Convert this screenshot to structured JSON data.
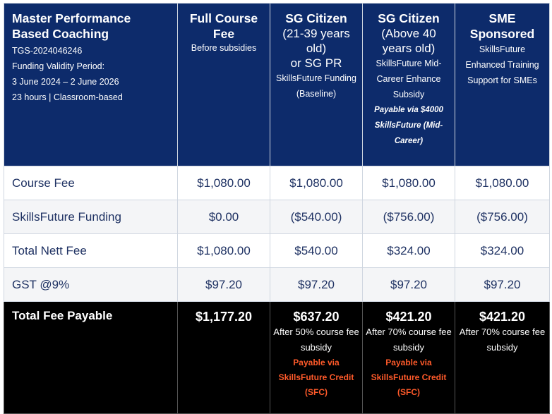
{
  "header": {
    "program": {
      "title": "Master Performance Based Coaching",
      "code": "TGS-2024046246",
      "validity_label": "Funding Validity Period:",
      "validity_dates": "3 June 2024 – 2 June 2026",
      "duration": "23 hours | Classroom-based"
    },
    "columns": [
      {
        "title": "Full Course Fee",
        "sub": "Before subsidies"
      },
      {
        "title_line1": "SG Citizen",
        "title_line2": "(21-39 years old)",
        "title_line3": "or SG PR",
        "sub": "SkillsFuture Funding (Baseline)"
      },
      {
        "title_line1": "SG Citizen",
        "title_line2": "(Above 40 years old)",
        "sub": "SkillsFuture Mid-Career Enhance Subsidy",
        "payable": "Payable via $4000 SkillsFuture (Mid-Career)"
      },
      {
        "title": "SME Sponsored",
        "sub": "SkillsFuture Enhanced Training Support for SMEs"
      }
    ]
  },
  "rows": [
    {
      "label": "Course Fee",
      "values": [
        "$1,080.00",
        "$1,080.00",
        "$1,080.00",
        "$1,080.00"
      ]
    },
    {
      "label": "SkillsFuture Funding",
      "values": [
        "$0.00",
        "($540.00)",
        "($756.00)",
        "($756.00)"
      ]
    },
    {
      "label": "Total Nett Fee",
      "values": [
        "$1,080.00",
        "$540.00",
        "$324.00",
        "$324.00"
      ]
    },
    {
      "label": "GST @9%",
      "values": [
        "$97.20",
        "$97.20",
        "$97.20",
        "$97.20"
      ]
    }
  ],
  "total": {
    "label": "Total Fee Payable",
    "cells": [
      {
        "amount": "$1,177.20"
      },
      {
        "amount": "$637.20",
        "note": "After 50% course fee subsidy",
        "payable": "Payable via SkillsFuture Credit (SFC)"
      },
      {
        "amount": "$421.20",
        "note": "After 70% course fee subsidy",
        "payable": "Payable via SkillsFuture Credit (SFC)"
      },
      {
        "amount": "$421.20",
        "note": "After 70% course fee subsidy"
      }
    ]
  },
  "colors": {
    "header_bg": "#0d2b6b",
    "total_bg": "#000000",
    "accent_red": "#ff5a2a",
    "body_text": "#1f3263"
  }
}
